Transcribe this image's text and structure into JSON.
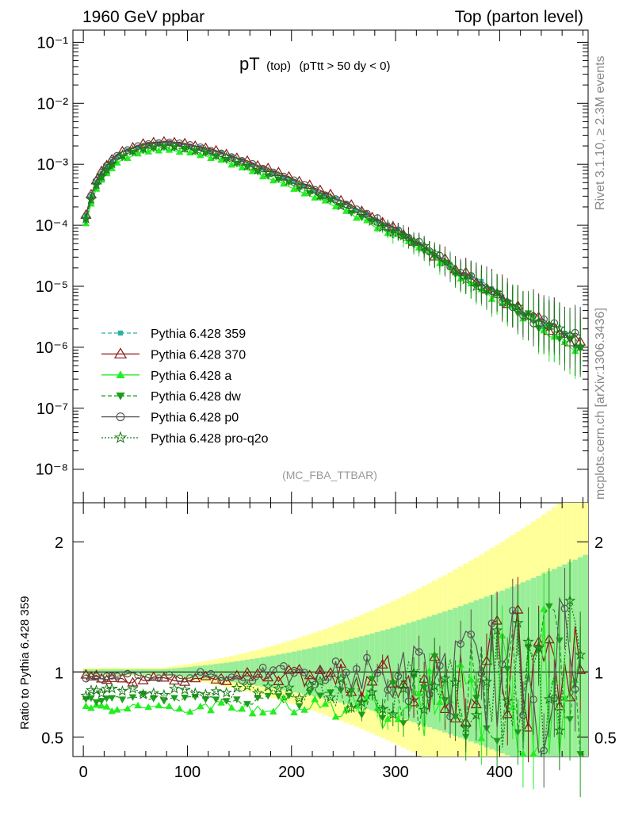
{
  "header": {
    "left": "1960 GeV ppbar",
    "right": "Top (parton level)"
  },
  "side_labels": {
    "rivet": "Rivet 3.1.10, ≥ 2.3M events",
    "mcplots": "mcplots.cern.ch [arXiv:1306.3436]"
  },
  "chart_data": [
    {
      "type": "line",
      "title_main": "pT",
      "title_sub1": "(top)",
      "title_sub2": "(pTtt > 50 dy < 0)",
      "watermark": "(MC_FBA_TTBAR)",
      "yscale": "log",
      "xlim": [
        -10,
        485
      ],
      "ylim_log10": [
        -8.55,
        -0.8
      ],
      "y_tick_labels": [
        "10⁻¹",
        "10⁻²",
        "10⁻³",
        "10⁻⁴",
        "10⁻⁵",
        "10⁻⁶",
        "10⁻⁷",
        "10⁻⁸"
      ],
      "legend_position": "lower-left",
      "series": [
        {
          "name": "Pythia 6.428 359",
          "color": "#2ab3a0",
          "marker": "square-small",
          "dash": "dashed",
          "ratio_offset": 0.0,
          "log_offset": 0.0
        },
        {
          "name": "Pythia 6.428 370",
          "color": "#8b1a1a",
          "marker": "triangle-open",
          "dash": "solid",
          "ratio_offset": -0.05,
          "log_offset": 0.02
        },
        {
          "name": "Pythia 6.428 a",
          "color": "#22ee22",
          "marker": "triangle-filled",
          "dash": "solid",
          "ratio_offset": -0.27,
          "log_offset": -0.12
        },
        {
          "name": "Pythia 6.428 dw",
          "color": "#1d9e1d",
          "marker": "triangle-down-filled",
          "dash": "dashed",
          "ratio_offset": -0.2,
          "log_offset": -0.08
        },
        {
          "name": "Pythia 6.428 p0",
          "color": "#555555",
          "marker": "circle-open",
          "dash": "solid",
          "ratio_offset": -0.03,
          "log_offset": 0.0
        },
        {
          "name": "Pythia 6.428 pro-q2o",
          "color": "#157a15",
          "marker": "star-open",
          "dash": "dotted",
          "ratio_offset": -0.15,
          "log_offset": -0.05
        }
      ],
      "profile_log10": {
        "x": [
          2.5,
          10,
          20,
          35,
          50,
          65,
          80,
          100,
          130,
          160,
          200,
          240,
          280,
          320,
          360,
          400,
          440,
          480
        ],
        "y": [
          -3.85,
          -3.35,
          -3.07,
          -2.82,
          -2.72,
          -2.66,
          -2.64,
          -2.68,
          -2.8,
          -2.98,
          -3.25,
          -3.55,
          -3.88,
          -4.27,
          -4.75,
          -5.15,
          -5.6,
          -5.95
        ]
      },
      "bin_width": 5
    },
    {
      "type": "line",
      "ylabel": "Ratio to Pythia 6.428 359",
      "ylim": [
        0.35,
        2.3
      ],
      "y_ticks": [
        0.5,
        1,
        2
      ],
      "y_tick_labels": [
        "0.5",
        "1",
        "2"
      ],
      "x_ticks": [
        0,
        100,
        200,
        300,
        400
      ],
      "x_tick_labels": [
        "0",
        "100",
        "200",
        "300",
        "400"
      ],
      "reference": 1,
      "band_colors": {
        "inner": "#99ee99",
        "outer": "#ffff99"
      }
    }
  ]
}
